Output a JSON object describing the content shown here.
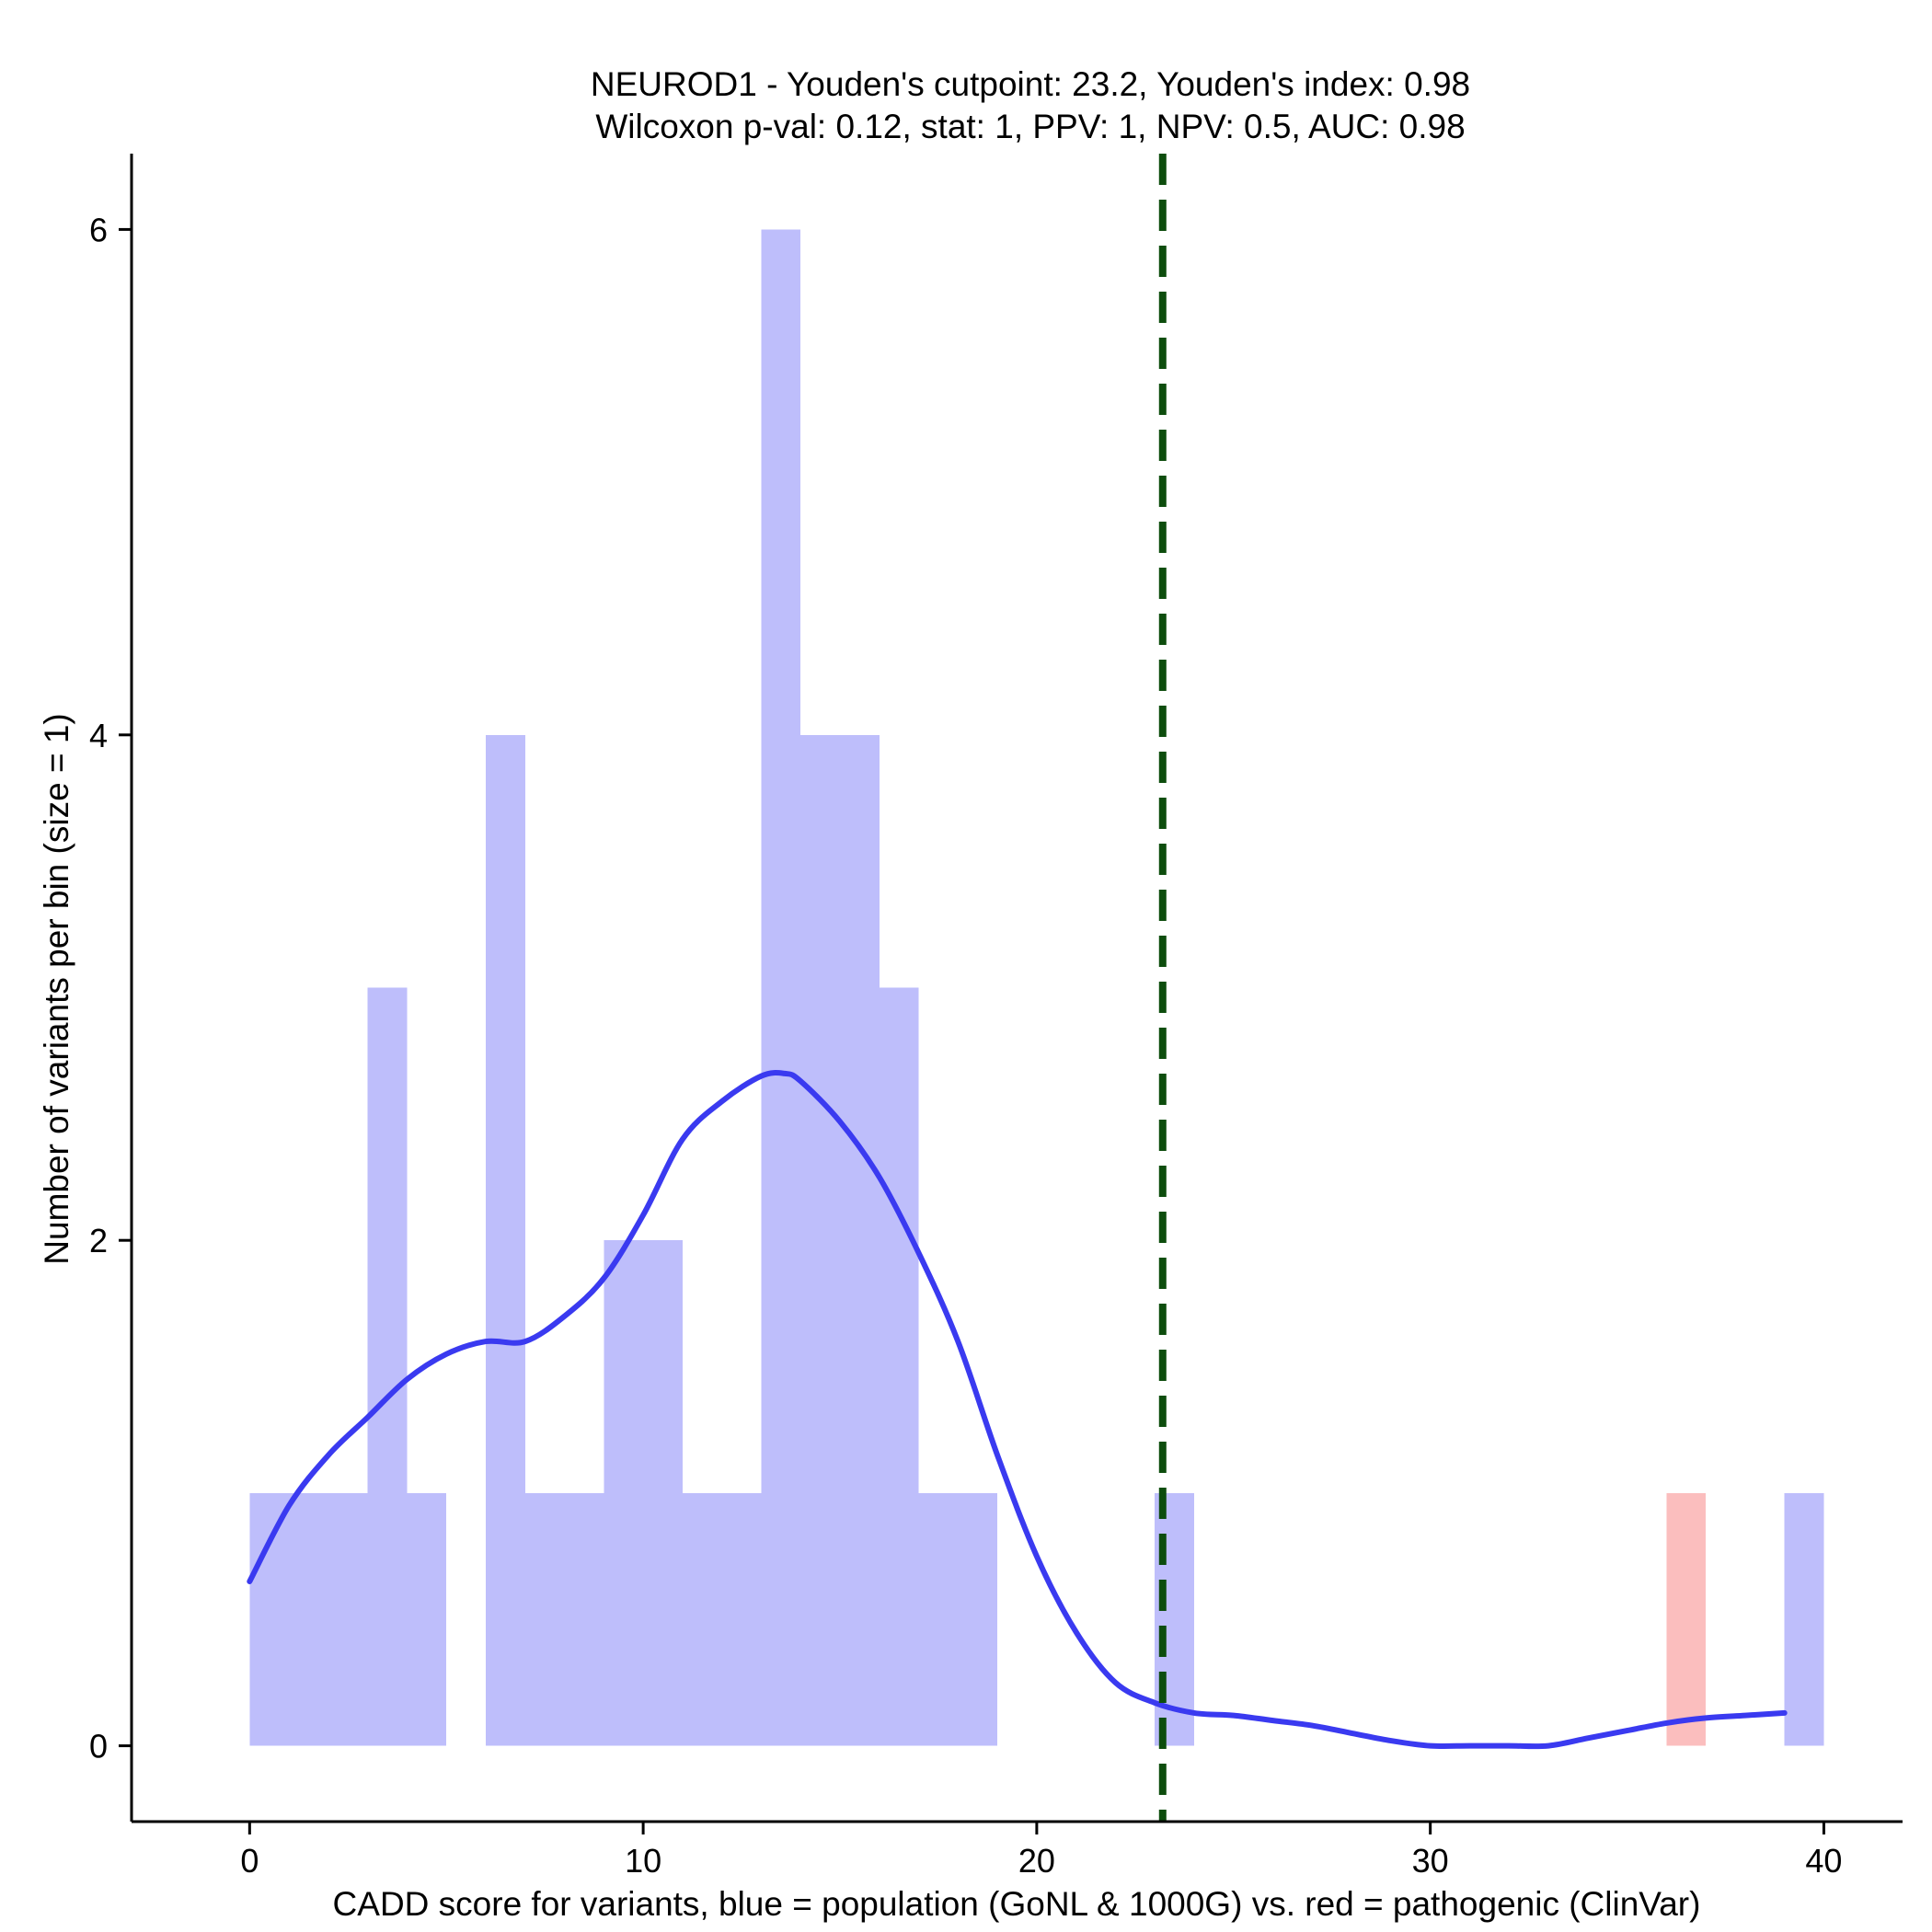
{
  "chart_data": {
    "type": "bar",
    "title": "NEUROD1 - Youden's cutpoint: 23.2, Youden's index: 0.98",
    "subtitle": "Wilcoxon p-val: 0.12, stat: 1, PPV: 1, NPV: 0.5, AUC: 0.98",
    "xlabel": "CADD score for variants, blue = population (GoNL & 1000G) vs. red = pathogenic (ClinVar)",
    "ylabel": "Number of variants per bin (size = 1)",
    "xlim": [
      -3,
      42
    ],
    "ylim": [
      -0.3,
      6.3
    ],
    "x_ticks": [
      0,
      10,
      20,
      30,
      40
    ],
    "y_ticks": [
      0,
      2,
      4,
      6
    ],
    "bin_size": 1,
    "grid": false,
    "series": [
      {
        "color": "#bebefb",
        "bins": [
          {
            "x0": 0,
            "x1": 1,
            "count": 1
          },
          {
            "x0": 1,
            "x1": 2,
            "count": 1
          },
          {
            "x0": 2,
            "x1": 3,
            "count": 1
          },
          {
            "x0": 3,
            "x1": 4,
            "count": 3
          },
          {
            "x0": 4,
            "x1": 5,
            "count": 1
          },
          {
            "x0": 6,
            "x1": 7,
            "count": 4
          },
          {
            "x0": 7,
            "x1": 8,
            "count": 1
          },
          {
            "x0": 8,
            "x1": 9,
            "count": 1
          },
          {
            "x0": 9,
            "x1": 10,
            "count": 2
          },
          {
            "x0": 10,
            "x1": 11,
            "count": 2
          },
          {
            "x0": 11,
            "x1": 12,
            "count": 1
          },
          {
            "x0": 12,
            "x1": 13,
            "count": 1
          },
          {
            "x0": 13,
            "x1": 14,
            "count": 6
          },
          {
            "x0": 14,
            "x1": 15,
            "count": 4
          },
          {
            "x0": 15,
            "x1": 16,
            "count": 4
          },
          {
            "x0": 16,
            "x1": 17,
            "count": 3
          },
          {
            "x0": 17,
            "x1": 18,
            "count": 1
          },
          {
            "x0": 18,
            "x1": 19,
            "count": 1
          },
          {
            "x0": 23,
            "x1": 24,
            "count": 1
          },
          {
            "x0": 39,
            "x1": 40,
            "count": 1
          }
        ]
      },
      {
        "color": "#fbbebe",
        "bins": [
          {
            "x0": 36,
            "x1": 37,
            "count": 1
          }
        ]
      }
    ],
    "density_curve": {
      "color": "#3a3af0",
      "x": [
        0,
        1,
        2,
        3,
        4,
        5,
        6,
        7,
        8,
        9,
        10,
        11,
        12,
        13,
        13.6,
        14,
        15,
        16,
        17,
        18,
        19,
        20,
        21,
        22,
        23,
        24,
        25,
        26,
        27,
        28,
        29,
        30,
        31,
        32,
        33,
        34,
        35,
        36,
        37,
        38,
        39
      ],
      "y": [
        0.65,
        0.95,
        1.15,
        1.3,
        1.45,
        1.55,
        1.6,
        1.6,
        1.7,
        1.85,
        2.1,
        2.4,
        2.55,
        2.65,
        2.66,
        2.63,
        2.47,
        2.25,
        1.95,
        1.6,
        1.15,
        0.75,
        0.45,
        0.25,
        0.17,
        0.13,
        0.12,
        0.1,
        0.08,
        0.05,
        0.02,
        0.0,
        0.0,
        0.0,
        0.0,
        0.03,
        0.06,
        0.09,
        0.11,
        0.12,
        0.13
      ]
    },
    "cutpoint": {
      "x": 23.2,
      "color": "#0d4d0d",
      "style": "dashed"
    }
  }
}
